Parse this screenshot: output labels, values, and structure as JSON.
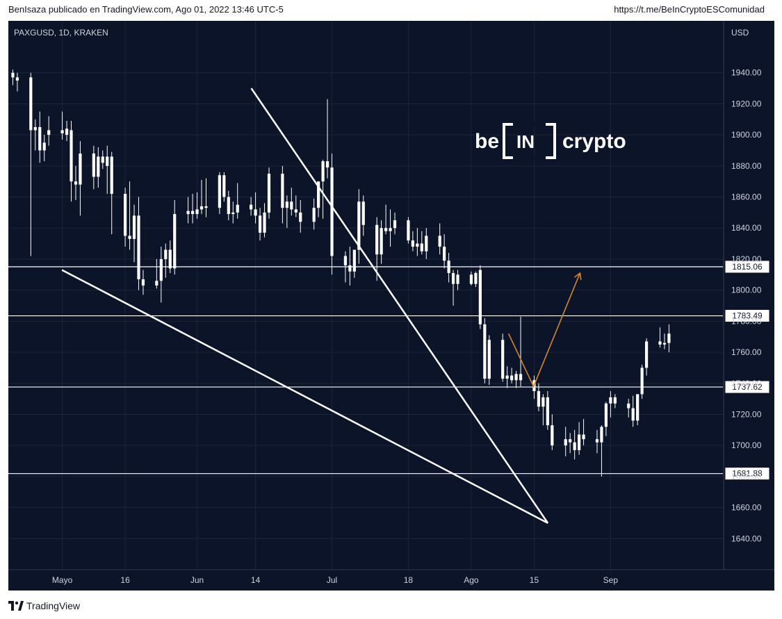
{
  "header": {
    "publisher_line": "BenIsaza publicado en TradingView.com, Ago 01, 2022 13:46 UTC-5",
    "link": "https://t.me/BeInCryptoESComunidad"
  },
  "footer": {
    "brand": "TradingView",
    "logo_icon": "tradingview-logo-icon"
  },
  "symbol": "PAXGUSD, 1D, KRAKEN",
  "currency": "USD",
  "watermark": {
    "pre": "be",
    "box": "IN",
    "post": "crypto"
  },
  "colors": {
    "background": "#0c1429",
    "grid": "#1c2536",
    "candle": "#ffffff",
    "line": "#ffffff",
    "projection": "#d4862c",
    "axis_text": "#d1d4dc"
  },
  "chart_data": {
    "type": "candlestick",
    "title": "PAXGUSD, 1D, KRAKEN",
    "ylabel": "USD",
    "ylim": [
      1620,
      1960
    ],
    "grid": true,
    "y_ticks": [
      1640,
      1660,
      1680,
      1700,
      1720,
      1740,
      1760,
      1780,
      1800,
      1820,
      1840,
      1860,
      1880,
      1900,
      1920,
      1940
    ],
    "y_tick_labels": [
      "1640.00",
      "1660.00",
      "1680.00",
      "1700.00",
      "1720.00",
      "1740.00",
      "1760.00",
      "1780.00",
      "1800.00",
      "1820.00",
      "1840.00",
      "1860.00",
      "1880.00",
      "1900.00",
      "1920.00",
      "1940.00"
    ],
    "x_ticks": [
      {
        "label": "Mayo",
        "date": "2022-05-02"
      },
      {
        "label": "16",
        "date": "2022-05-16"
      },
      {
        "label": "Jun",
        "date": "2022-06-01"
      },
      {
        "label": "14",
        "date": "2022-06-14"
      },
      {
        "label": "Jul",
        "date": "2022-07-01"
      },
      {
        "label": "18",
        "date": "2022-07-18"
      },
      {
        "label": "Ago",
        "date": "2022-08-01"
      },
      {
        "label": "15",
        "date": "2022-08-15"
      },
      {
        "label": "Sep",
        "date": "2022-09-01"
      }
    ],
    "candles": [
      {
        "d": "2022-04-21",
        "o": 1940,
        "h": 1942,
        "l": 1932,
        "c": 1937
      },
      {
        "d": "2022-04-22",
        "o": 1937,
        "h": 1940,
        "l": 1928,
        "c": 1935
      },
      {
        "d": "2022-04-25",
        "o": 1937,
        "h": 1940,
        "l": 1822,
        "c": 1903
      },
      {
        "d": "2022-04-26",
        "o": 1903,
        "h": 1910,
        "l": 1890,
        "c": 1905
      },
      {
        "d": "2022-04-27",
        "o": 1905,
        "h": 1915,
        "l": 1882,
        "c": 1890
      },
      {
        "d": "2022-04-28",
        "o": 1895,
        "h": 1900,
        "l": 1883,
        "c": 1890
      },
      {
        "d": "2022-04-29",
        "o": 1900,
        "h": 1912,
        "l": 1893,
        "c": 1903
      },
      {
        "d": "2022-05-02",
        "o": 1903,
        "h": 1915,
        "l": 1897,
        "c": 1901
      },
      {
        "d": "2022-05-03",
        "o": 1900,
        "h": 1909,
        "l": 1896,
        "c": 1904
      },
      {
        "d": "2022-05-04",
        "o": 1903,
        "h": 1909,
        "l": 1857,
        "c": 1870
      },
      {
        "d": "2022-05-05",
        "o": 1870,
        "h": 1880,
        "l": 1858,
        "c": 1868
      },
      {
        "d": "2022-05-06",
        "o": 1868,
        "h": 1896,
        "l": 1848,
        "c": 1888
      },
      {
        "d": "2022-05-09",
        "o": 1888,
        "h": 1893,
        "l": 1865,
        "c": 1873
      },
      {
        "d": "2022-05-10",
        "o": 1873,
        "h": 1892,
        "l": 1866,
        "c": 1886
      },
      {
        "d": "2022-05-11",
        "o": 1886,
        "h": 1890,
        "l": 1878,
        "c": 1882
      },
      {
        "d": "2022-05-12",
        "o": 1880,
        "h": 1893,
        "l": 1862,
        "c": 1886
      },
      {
        "d": "2022-05-13",
        "o": 1886,
        "h": 1889,
        "l": 1836,
        "c": 1862
      },
      {
        "d": "2022-05-16",
        "o": 1862,
        "h": 1866,
        "l": 1828,
        "c": 1835
      },
      {
        "d": "2022-05-17",
        "o": 1835,
        "h": 1870,
        "l": 1826,
        "c": 1833
      },
      {
        "d": "2022-05-18",
        "o": 1833,
        "h": 1855,
        "l": 1818,
        "c": 1848
      },
      {
        "d": "2022-05-19",
        "o": 1848,
        "h": 1860,
        "l": 1800,
        "c": 1807
      },
      {
        "d": "2022-05-20",
        "o": 1807,
        "h": 1813,
        "l": 1797,
        "c": 1803
      },
      {
        "d": "2022-05-23",
        "o": 1803,
        "h": 1820,
        "l": 1801,
        "c": 1806
      },
      {
        "d": "2022-05-24",
        "o": 1806,
        "h": 1828,
        "l": 1792,
        "c": 1820
      },
      {
        "d": "2022-05-25",
        "o": 1820,
        "h": 1830,
        "l": 1808,
        "c": 1826
      },
      {
        "d": "2022-05-26",
        "o": 1826,
        "h": 1832,
        "l": 1811,
        "c": 1814
      },
      {
        "d": "2022-05-27",
        "o": 1814,
        "h": 1858,
        "l": 1810,
        "c": 1849
      },
      {
        "d": "2022-05-30",
        "o": 1849,
        "h": 1860,
        "l": 1843,
        "c": 1851
      },
      {
        "d": "2022-05-31",
        "o": 1851,
        "h": 1862,
        "l": 1843,
        "c": 1849
      },
      {
        "d": "2022-06-01",
        "o": 1849,
        "h": 1863,
        "l": 1846,
        "c": 1852
      },
      {
        "d": "2022-06-02",
        "o": 1852,
        "h": 1871,
        "l": 1849,
        "c": 1854
      },
      {
        "d": "2022-06-03",
        "o": 1854,
        "h": 1872,
        "l": 1847,
        "c": 1853
      },
      {
        "d": "2022-06-06",
        "o": 1853,
        "h": 1876,
        "l": 1849,
        "c": 1874
      },
      {
        "d": "2022-06-07",
        "o": 1874,
        "h": 1876,
        "l": 1857,
        "c": 1860
      },
      {
        "d": "2022-06-08",
        "o": 1860,
        "h": 1864,
        "l": 1845,
        "c": 1849
      },
      {
        "d": "2022-06-09",
        "o": 1849,
        "h": 1857,
        "l": 1843,
        "c": 1850
      },
      {
        "d": "2022-06-10",
        "o": 1850,
        "h": 1869,
        "l": 1846,
        "c": 1855
      },
      {
        "d": "2022-06-13",
        "o": 1855,
        "h": 1860,
        "l": 1848,
        "c": 1852
      },
      {
        "d": "2022-06-14",
        "o": 1852,
        "h": 1863,
        "l": 1843,
        "c": 1848
      },
      {
        "d": "2022-06-15",
        "o": 1848,
        "h": 1853,
        "l": 1832,
        "c": 1837
      },
      {
        "d": "2022-06-16",
        "o": 1837,
        "h": 1856,
        "l": 1834,
        "c": 1850
      },
      {
        "d": "2022-06-17",
        "o": 1850,
        "h": 1879,
        "l": 1846,
        "c": 1875
      },
      {
        "d": "2022-06-20",
        "o": 1875,
        "h": 1880,
        "l": 1843,
        "c": 1853
      },
      {
        "d": "2022-06-21",
        "o": 1853,
        "h": 1861,
        "l": 1840,
        "c": 1857
      },
      {
        "d": "2022-06-22",
        "o": 1857,
        "h": 1866,
        "l": 1848,
        "c": 1852
      },
      {
        "d": "2022-06-23",
        "o": 1852,
        "h": 1861,
        "l": 1847,
        "c": 1850
      },
      {
        "d": "2022-06-24",
        "o": 1850,
        "h": 1858,
        "l": 1837,
        "c": 1844
      },
      {
        "d": "2022-06-27",
        "o": 1844,
        "h": 1859,
        "l": 1839,
        "c": 1853
      },
      {
        "d": "2022-06-28",
        "o": 1853,
        "h": 1870,
        "l": 1847,
        "c": 1870
      },
      {
        "d": "2022-06-29",
        "o": 1870,
        "h": 1884,
        "l": 1846,
        "c": 1883
      },
      {
        "d": "2022-06-30",
        "o": 1883,
        "h": 1923,
        "l": 1872,
        "c": 1879
      },
      {
        "d": "2022-07-01",
        "o": 1879,
        "h": 1888,
        "l": 1810,
        "c": 1822
      },
      {
        "d": "2022-07-04",
        "o": 1822,
        "h": 1825,
        "l": 1805,
        "c": 1816
      },
      {
        "d": "2022-07-05",
        "o": 1816,
        "h": 1828,
        "l": 1803,
        "c": 1812
      },
      {
        "d": "2022-07-06",
        "o": 1812,
        "h": 1825,
        "l": 1808,
        "c": 1826
      },
      {
        "d": "2022-07-07",
        "o": 1826,
        "h": 1865,
        "l": 1817,
        "c": 1857
      },
      {
        "d": "2022-07-08",
        "o": 1857,
        "h": 1861,
        "l": 1835,
        "c": 1842
      },
      {
        "d": "2022-07-11",
        "o": 1842,
        "h": 1847,
        "l": 1806,
        "c": 1823
      },
      {
        "d": "2022-07-12",
        "o": 1823,
        "h": 1845,
        "l": 1817,
        "c": 1840
      },
      {
        "d": "2022-07-13",
        "o": 1840,
        "h": 1855,
        "l": 1836,
        "c": 1838
      },
      {
        "d": "2022-07-14",
        "o": 1838,
        "h": 1852,
        "l": 1828,
        "c": 1840
      },
      {
        "d": "2022-07-15",
        "o": 1840,
        "h": 1850,
        "l": 1836,
        "c": 1845
      },
      {
        "d": "2022-07-18",
        "o": 1845,
        "h": 1847,
        "l": 1830,
        "c": 1832
      },
      {
        "d": "2022-07-19",
        "o": 1832,
        "h": 1838,
        "l": 1825,
        "c": 1828
      },
      {
        "d": "2022-07-20",
        "o": 1828,
        "h": 1840,
        "l": 1822,
        "c": 1830
      },
      {
        "d": "2022-07-21",
        "o": 1830,
        "h": 1838,
        "l": 1823,
        "c": 1825
      },
      {
        "d": "2022-07-22",
        "o": 1825,
        "h": 1840,
        "l": 1820,
        "c": 1835
      },
      {
        "d": "2022-07-25",
        "o": 1835,
        "h": 1843,
        "l": 1823,
        "c": 1828
      },
      {
        "d": "2022-07-26",
        "o": 1828,
        "h": 1836,
        "l": 1814,
        "c": 1819
      },
      {
        "d": "2022-07-27",
        "o": 1819,
        "h": 1824,
        "l": 1805,
        "c": 1811
      },
      {
        "d": "2022-07-28",
        "o": 1811,
        "h": 1813,
        "l": 1790,
        "c": 1804
      },
      {
        "d": "2022-07-29",
        "o": 1804,
        "h": 1813,
        "l": 1800,
        "c": 1810
      },
      {
        "d": "2022-08-01",
        "o": 1810,
        "h": 1812,
        "l": 1803,
        "c": 1804
      },
      {
        "d": "2022-08-02",
        "o": 1804,
        "h": 1812,
        "l": 1802,
        "c": 1811
      },
      {
        "d": "2022-08-03",
        "o": 1813,
        "h": 1816,
        "l": 1775,
        "c": 1778
      },
      {
        "d": "2022-08-04",
        "o": 1778,
        "h": 1782,
        "l": 1740,
        "c": 1743
      },
      {
        "d": "2022-08-05",
        "o": 1743,
        "h": 1771,
        "l": 1739,
        "c": 1768
      },
      {
        "d": "2022-08-08",
        "o": 1768,
        "h": 1772,
        "l": 1741,
        "c": 1743
      },
      {
        "d": "2022-08-09",
        "o": 1743,
        "h": 1751,
        "l": 1737,
        "c": 1745
      },
      {
        "d": "2022-08-10",
        "o": 1745,
        "h": 1750,
        "l": 1740,
        "c": 1742
      },
      {
        "d": "2022-08-11",
        "o": 1742,
        "h": 1748,
        "l": 1737,
        "c": 1746
      },
      {
        "d": "2022-08-12",
        "o": 1746,
        "h": 1783,
        "l": 1738,
        "c": 1742
      },
      {
        "d": "2022-08-15",
        "o": 1742,
        "h": 1745,
        "l": 1730,
        "c": 1735
      },
      {
        "d": "2022-08-16",
        "o": 1735,
        "h": 1740,
        "l": 1722,
        "c": 1725
      },
      {
        "d": "2022-08-17",
        "o": 1725,
        "h": 1733,
        "l": 1713,
        "c": 1731
      },
      {
        "d": "2022-08-18",
        "o": 1731,
        "h": 1735,
        "l": 1710,
        "c": 1713
      },
      {
        "d": "2022-08-19",
        "o": 1713,
        "h": 1720,
        "l": 1697,
        "c": 1700
      },
      {
        "d": "2022-08-22",
        "o": 1700,
        "h": 1712,
        "l": 1693,
        "c": 1704
      },
      {
        "d": "2022-08-23",
        "o": 1704,
        "h": 1708,
        "l": 1695,
        "c": 1702
      },
      {
        "d": "2022-08-24",
        "o": 1702,
        "h": 1710,
        "l": 1691,
        "c": 1697
      },
      {
        "d": "2022-08-25",
        "o": 1697,
        "h": 1715,
        "l": 1694,
        "c": 1707
      },
      {
        "d": "2022-08-26",
        "o": 1707,
        "h": 1717,
        "l": 1700,
        "c": 1704
      },
      {
        "d": "2022-08-29",
        "o": 1704,
        "h": 1710,
        "l": 1695,
        "c": 1702
      },
      {
        "d": "2022-08-30",
        "o": 1702,
        "h": 1713,
        "l": 1680,
        "c": 1712
      },
      {
        "d": "2022-08-31",
        "o": 1712,
        "h": 1728,
        "l": 1706,
        "c": 1727
      },
      {
        "d": "2022-09-01",
        "o": 1727,
        "h": 1735,
        "l": 1718,
        "c": 1731
      },
      {
        "d": "2022-09-02",
        "o": 1731,
        "h": 1733,
        "l": 1724,
        "c": 1727
      },
      {
        "d": "2022-09-05",
        "o": 1727,
        "h": 1730,
        "l": 1718,
        "c": 1724
      },
      {
        "d": "2022-09-06",
        "o": 1724,
        "h": 1732,
        "l": 1712,
        "c": 1716
      },
      {
        "d": "2022-09-07",
        "o": 1716,
        "h": 1733,
        "l": 1713,
        "c": 1733
      },
      {
        "d": "2022-09-08",
        "o": 1733,
        "h": 1752,
        "l": 1730,
        "c": 1750
      },
      {
        "d": "2022-09-09",
        "o": 1750,
        "h": 1769,
        "l": 1745,
        "c": 1767
      },
      {
        "d": "2022-09-12",
        "o": 1767,
        "h": 1776,
        "l": 1763,
        "c": 1765
      },
      {
        "d": "2022-09-13",
        "o": 1765,
        "h": 1772,
        "l": 1762,
        "c": 1766
      },
      {
        "d": "2022-09-14",
        "o": 1766,
        "h": 1778,
        "l": 1760,
        "c": 1772
      }
    ],
    "horizontal_levels": [
      {
        "value": 1815.06,
        "label": "1815.06"
      },
      {
        "value": 1783.49,
        "label": "1783.49"
      },
      {
        "value": 1737.62,
        "label": "1737.62"
      },
      {
        "value": 1681.88,
        "label": "1681.88"
      }
    ],
    "trendlines": [
      {
        "name": "upper",
        "points": [
          [
            0.34,
            1930
          ],
          [
            0.755,
            1650
          ]
        ]
      },
      {
        "name": "lower",
        "points": [
          [
            0.075,
            1813
          ],
          [
            0.755,
            1650
          ]
        ]
      }
    ],
    "projection": [
      [
        0.7,
        1772
      ],
      [
        0.735,
        1738
      ],
      [
        0.8,
        1811
      ]
    ]
  }
}
